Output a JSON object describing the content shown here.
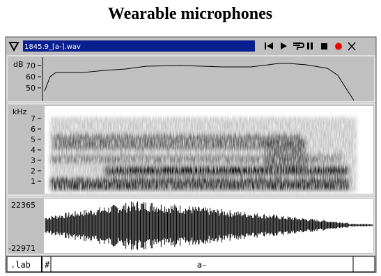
{
  "title": "Wearable microphones",
  "window": {
    "file_name": "1845.9_[a-].wav"
  },
  "intensity_panel": {
    "unit": "dB",
    "ticks": [
      "70",
      "60",
      "50"
    ]
  },
  "spectrogram_panel": {
    "unit": "kHz",
    "ticks": [
      "7",
      "6",
      "5",
      "4",
      "3",
      "2",
      "1"
    ]
  },
  "waveform_panel": {
    "max_label": "22365",
    "min_label": "-22971"
  },
  "label_tier": {
    "name": ".lab",
    "boundary": "#",
    "label": "a-"
  }
}
